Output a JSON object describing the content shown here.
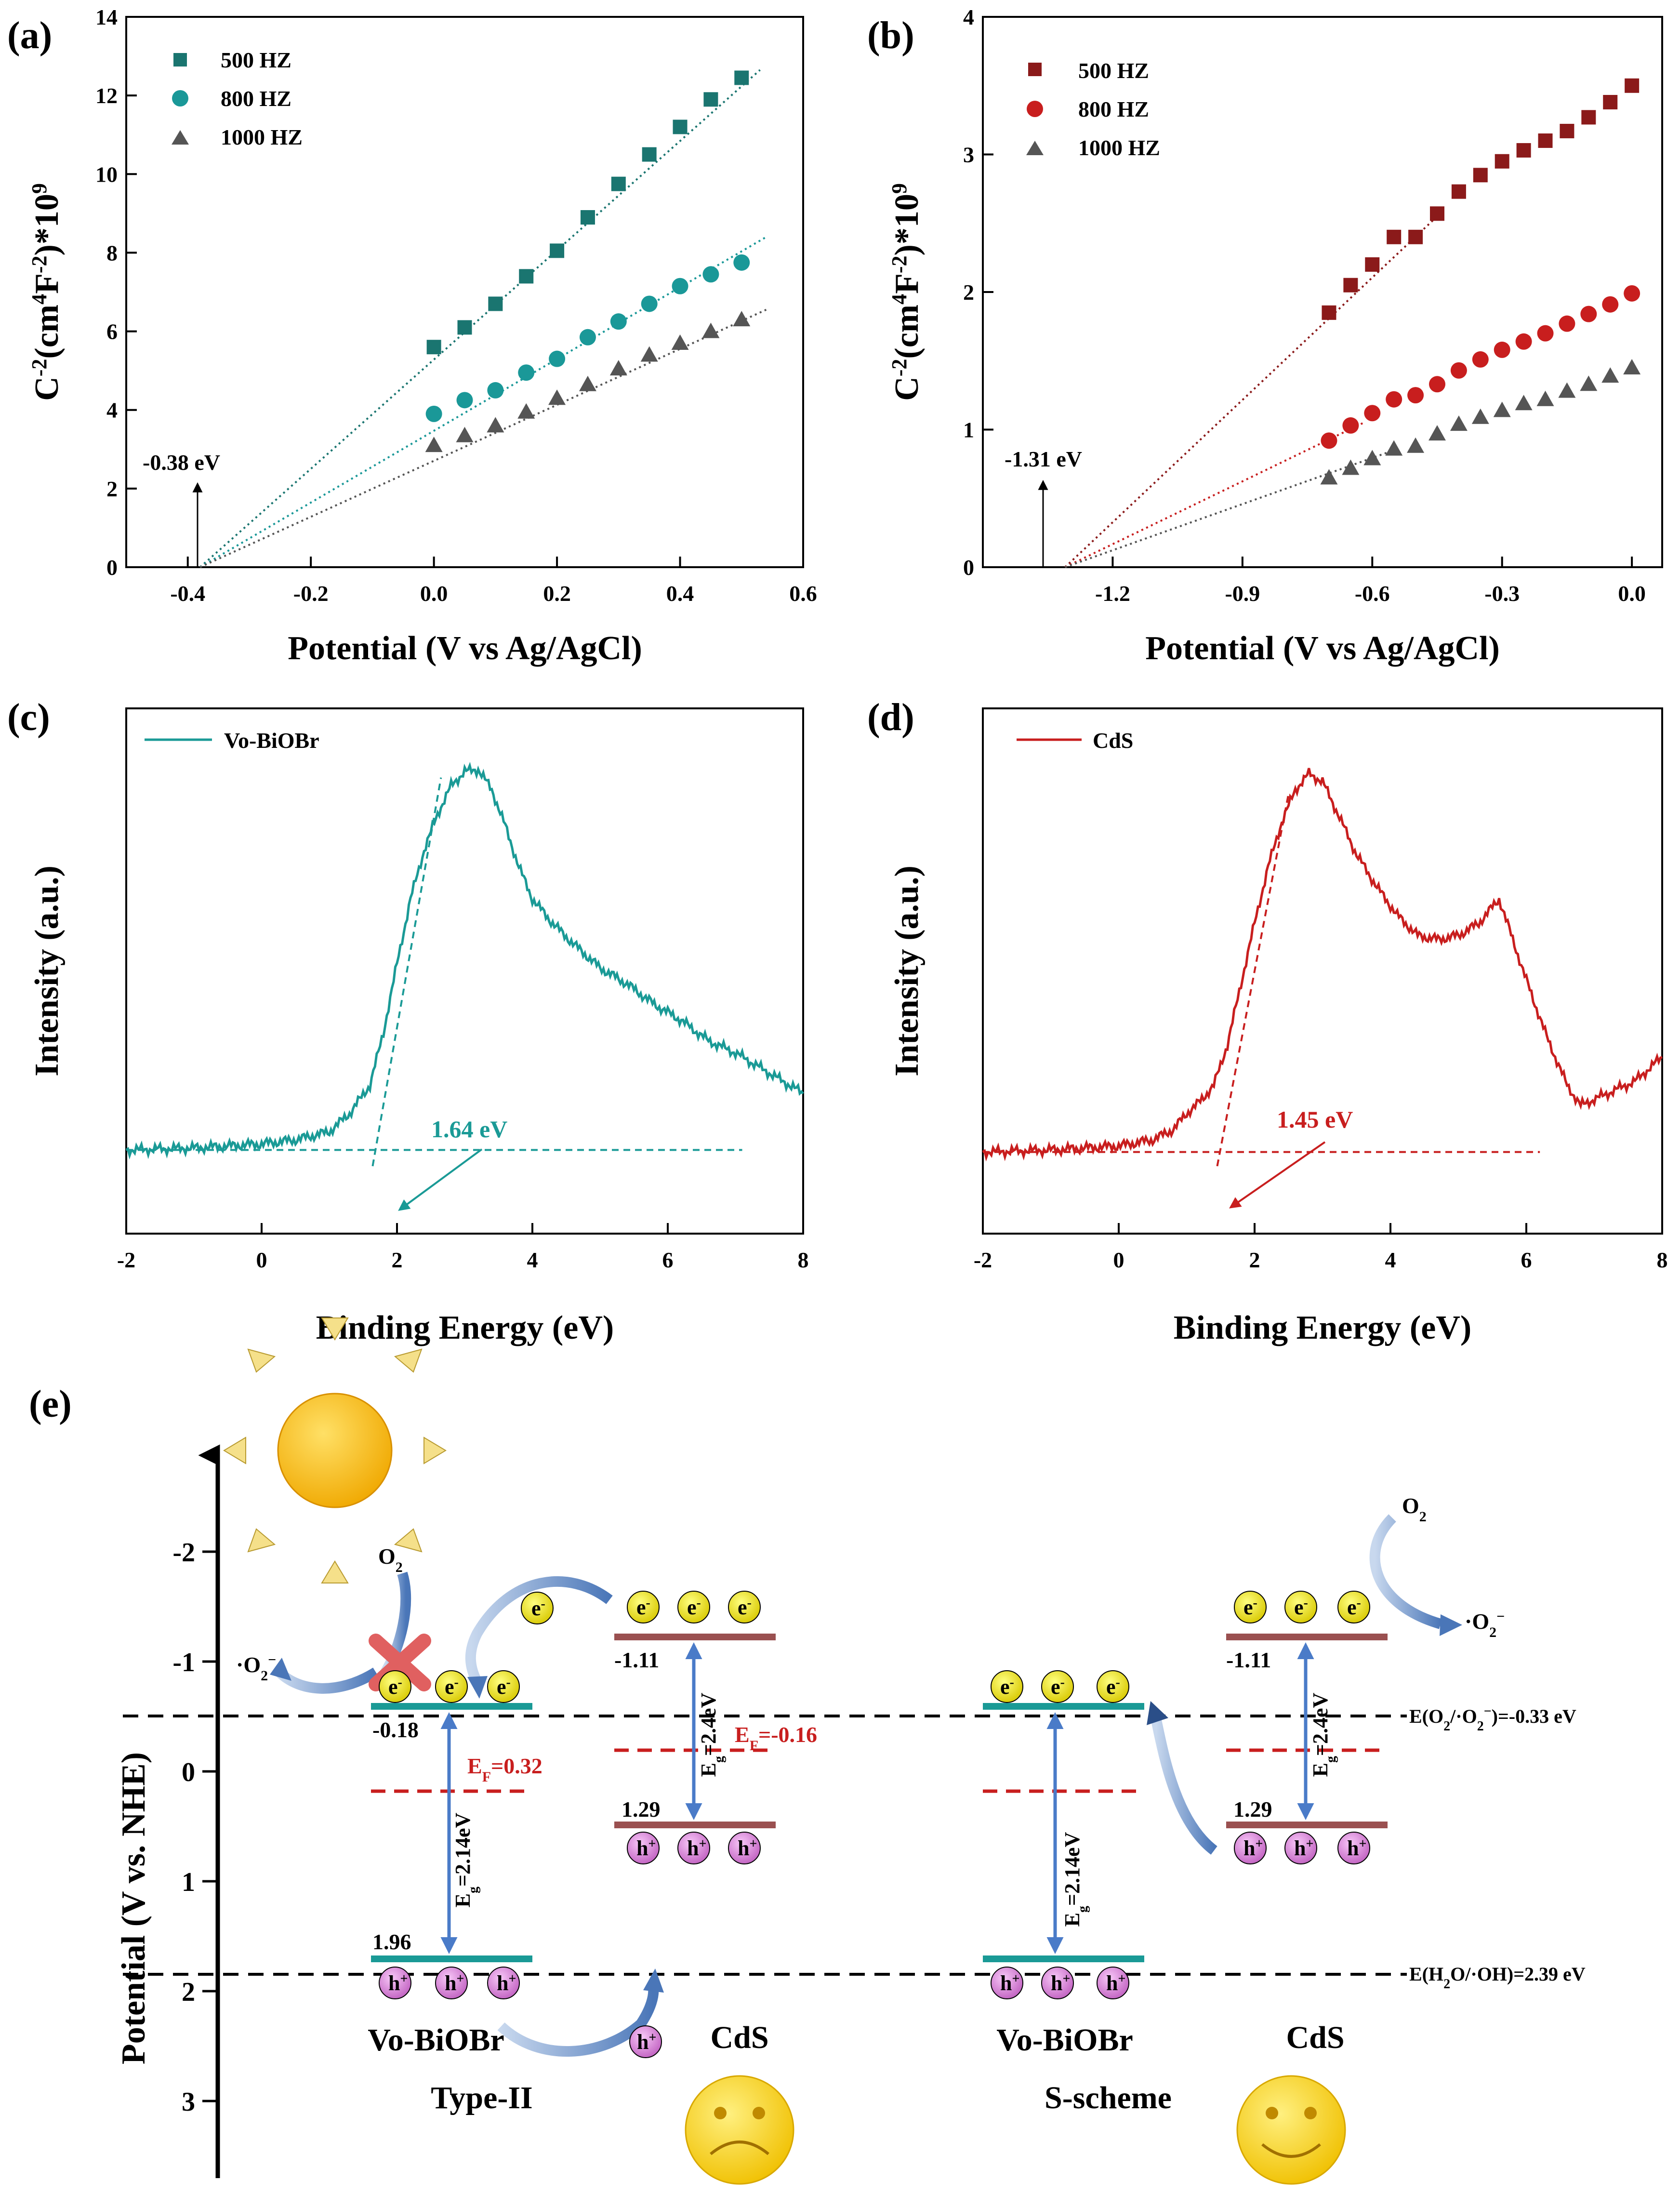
{
  "colors": {
    "teal": "#1a7570",
    "teal_light": "#1a9898",
    "cyan_line": "#1a9a96",
    "dark_red": "#8b1a1a",
    "red": "#c81e1e",
    "gray": "#555555",
    "arrow_blue": "#4a7bc8",
    "band_teal": "#1a9a96",
    "band_brown": "#9a5050",
    "fermi_red": "#c81e1e",
    "sun": "#f6b800",
    "electron": "#f0e000",
    "hole": "#e080e0"
  },
  "chart_data": [
    {
      "panel_label": "(a)",
      "type": "scatter",
      "xlabel": "Potential (V vs Ag/AgCl)",
      "ylabel_base": "C",
      "ylabel_sup1": "-2",
      "ylabel_mid": "(cm",
      "ylabel_sup2": "4",
      "ylabel_mid2": "F",
      "ylabel_sup3": "-2",
      "ylabel_end": ")*10",
      "ylabel_sup4": "9",
      "xlim": [
        -0.5,
        0.6
      ],
      "ylim": [
        0,
        14
      ],
      "xticks": [
        "-0.4",
        "-0.2",
        "0.0",
        "0.2",
        "0.4",
        "0.6"
      ],
      "xtick_values": [
        -0.4,
        -0.2,
        0.0,
        0.2,
        0.4,
        0.6
      ],
      "yticks": [
        "0",
        "2",
        "4",
        "6",
        "8",
        "10",
        "12",
        "14"
      ],
      "ytick_values": [
        0,
        2,
        4,
        6,
        8,
        10,
        12,
        14
      ],
      "annotation": "-0.38 eV",
      "annotation_x": -0.38,
      "series": [
        {
          "name": "500 HZ",
          "marker": "square",
          "color": "#1a7570",
          "x": [
            0,
            0.05,
            0.1,
            0.15,
            0.2,
            0.25,
            0.3,
            0.35,
            0.4,
            0.45,
            0.5
          ],
          "y": [
            5.6,
            6.1,
            6.7,
            7.4,
            8.05,
            8.9,
            9.75,
            10.5,
            11.2,
            11.9,
            12.45
          ],
          "fit": [
            [
              -0.38,
              0
            ],
            [
              0.53,
              12.65
            ]
          ],
          "fit_color": "#1a7570"
        },
        {
          "name": "800 HZ",
          "marker": "circle",
          "color": "#1a9898",
          "x": [
            0,
            0.05,
            0.1,
            0.15,
            0.2,
            0.25,
            0.3,
            0.35,
            0.4,
            0.45,
            0.5
          ],
          "y": [
            3.9,
            4.25,
            4.5,
            4.95,
            5.3,
            5.85,
            6.25,
            6.7,
            7.15,
            7.45,
            7.75
          ],
          "fit": [
            [
              -0.38,
              0
            ],
            [
              0.54,
              8.4
            ]
          ],
          "fit_color": "#1a9898"
        },
        {
          "name": "1000 HZ",
          "marker": "triangle",
          "color": "#555555",
          "x": [
            0,
            0.05,
            0.1,
            0.15,
            0.2,
            0.25,
            0.3,
            0.35,
            0.4,
            0.45,
            0.5
          ],
          "y": [
            3.1,
            3.35,
            3.6,
            3.95,
            4.3,
            4.65,
            5.05,
            5.4,
            5.7,
            6.0,
            6.3
          ],
          "fit": [
            [
              -0.38,
              0
            ],
            [
              0.54,
              6.55
            ]
          ],
          "fit_color": "#555555"
        }
      ]
    },
    {
      "panel_label": "(b)",
      "type": "scatter",
      "xlabel": "Potential (V vs Ag/AgCl)",
      "ylabel_base": "C",
      "ylabel_sup1": "-2",
      "ylabel_mid": "(cm",
      "ylabel_sup2": "4",
      "ylabel_mid2": "F",
      "ylabel_sup3": "-2",
      "ylabel_end": ")*10",
      "ylabel_sup4": "9",
      "xlim": [
        -1.5,
        0.07
      ],
      "ylim": [
        0,
        4
      ],
      "xticks": [
        "-1.2",
        "-0.9",
        "-0.6",
        "-0.3",
        "0.0"
      ],
      "xtick_values": [
        -1.2,
        -0.9,
        -0.6,
        -0.3,
        0.0
      ],
      "yticks": [
        "0",
        "1",
        "2",
        "3",
        "4"
      ],
      "ytick_values": [
        0,
        1,
        2,
        3,
        4
      ],
      "annotation": "-1.31 eV",
      "annotation_x": -1.31,
      "series": [
        {
          "name": "500 HZ",
          "marker": "square",
          "color": "#8b1a1a",
          "x": [
            -0.7,
            -0.65,
            -0.6,
            -0.55,
            -0.5,
            -0.45,
            -0.4,
            -0.35,
            -0.3,
            -0.25,
            -0.2,
            -0.15,
            -0.1,
            -0.05,
            0
          ],
          "y": [
            1.85,
            2.05,
            2.2,
            2.4,
            2.4,
            2.57,
            2.73,
            2.85,
            2.95,
            3.03,
            3.1,
            3.17,
            3.27,
            3.38,
            3.5
          ],
          "fit": [
            [
              -1.31,
              0
            ],
            [
              -0.45,
              2.55
            ]
          ],
          "fit_color": "#8b1a1a"
        },
        {
          "name": "800 HZ",
          "marker": "circle",
          "color": "#c81e1e",
          "x": [
            -0.7,
            -0.65,
            -0.6,
            -0.55,
            -0.5,
            -0.45,
            -0.4,
            -0.35,
            -0.3,
            -0.25,
            -0.2,
            -0.15,
            -0.1,
            -0.05,
            0
          ],
          "y": [
            0.92,
            1.03,
            1.12,
            1.22,
            1.25,
            1.33,
            1.43,
            1.51,
            1.58,
            1.64,
            1.7,
            1.77,
            1.84,
            1.91,
            1.99
          ],
          "fit": [
            [
              -1.31,
              0
            ],
            [
              -0.62,
              1.05
            ]
          ],
          "fit_color": "#c81e1e"
        },
        {
          "name": "1000 HZ",
          "marker": "triangle",
          "color": "#555555",
          "x": [
            -0.7,
            -0.65,
            -0.6,
            -0.55,
            -0.5,
            -0.45,
            -0.4,
            -0.35,
            -0.3,
            -0.25,
            -0.2,
            -0.15,
            -0.1,
            -0.05,
            0
          ],
          "y": [
            0.65,
            0.72,
            0.79,
            0.86,
            0.88,
            0.97,
            1.04,
            1.09,
            1.14,
            1.19,
            1.22,
            1.28,
            1.33,
            1.39,
            1.45
          ],
          "fit": [
            [
              -1.31,
              0
            ],
            [
              -0.55,
              0.85
            ]
          ],
          "fit_color": "#555555"
        }
      ]
    },
    {
      "panel_label": "(c)",
      "type": "line",
      "xlabel": "Binding Energy (eV)",
      "ylabel": "Intensity (a.u.)",
      "xlim": [
        -2,
        8
      ],
      "ylim": [
        0,
        1
      ],
      "xticks": [
        "-2",
        "0",
        "2",
        "4",
        "6",
        "8"
      ],
      "xtick_values": [
        -2,
        0,
        2,
        4,
        6,
        8
      ],
      "legend": "Vo-BiOBr",
      "color": "#1a9a96",
      "annotation": "1.64 eV",
      "x": [
        -2,
        -1,
        0,
        0.5,
        1,
        1.3,
        1.6,
        1.8,
        2.0,
        2.2,
        2.4,
        2.6,
        2.8,
        3.0,
        3.2,
        3.4,
        3.6,
        3.8,
        4.0,
        4.3,
        4.6,
        5.0,
        5.4,
        5.8,
        6.2,
        6.6,
        7.0,
        7.4,
        7.8,
        8.0
      ],
      "y": [
        0.04,
        0.045,
        0.055,
        0.065,
        0.085,
        0.13,
        0.2,
        0.33,
        0.5,
        0.66,
        0.78,
        0.87,
        0.94,
        0.975,
        0.98,
        0.93,
        0.84,
        0.74,
        0.66,
        0.6,
        0.55,
        0.49,
        0.45,
        0.4,
        0.36,
        0.31,
        0.28,
        0.24,
        0.2,
        0.18
      ],
      "baseline": [
        [
          -2,
          0.04
        ],
        [
          7.1,
          0.04
        ]
      ],
      "tangent": [
        [
          1.64,
          0.0
        ],
        [
          2.65,
          0.96
        ]
      ]
    },
    {
      "panel_label": "(d)",
      "type": "line",
      "xlabel": "Binding Energy (eV)",
      "ylabel": "Intensity (a.u.)",
      "xlim": [
        -2,
        8
      ],
      "ylim": [
        0,
        1
      ],
      "xticks": [
        "-2",
        "0",
        "2",
        "4",
        "6",
        "8"
      ],
      "xtick_values": [
        -2,
        0,
        2,
        4,
        6,
        8
      ],
      "legend": "CdS",
      "color": "#c81e1e",
      "annotation": "1.45 eV",
      "x": [
        -2,
        -1,
        0,
        0.5,
        0.8,
        1.0,
        1.2,
        1.4,
        1.6,
        1.8,
        2.0,
        2.2,
        2.4,
        2.6,
        2.8,
        3.0,
        3.2,
        3.5,
        3.8,
        4.1,
        4.4,
        4.7,
        5.0,
        5.3,
        5.6,
        5.8,
        6.0,
        6.3,
        6.6,
        6.8,
        7.2,
        7.6,
        8.0
      ],
      "y": [
        0.035,
        0.04,
        0.05,
        0.065,
        0.09,
        0.13,
        0.16,
        0.2,
        0.3,
        0.45,
        0.6,
        0.74,
        0.85,
        0.93,
        0.97,
        0.95,
        0.88,
        0.77,
        0.69,
        0.62,
        0.57,
        0.56,
        0.57,
        0.6,
        0.66,
        0.56,
        0.46,
        0.32,
        0.2,
        0.15,
        0.18,
        0.21,
        0.27
      ],
      "baseline": [
        [
          -2,
          0.035
        ],
        [
          6.2,
          0.035
        ]
      ],
      "tangent": [
        [
          1.45,
          0.0
        ],
        [
          2.5,
          0.92
        ]
      ]
    }
  ],
  "panel_e": {
    "label": "(e)",
    "ylabel": "Potential (V vs. NHE)",
    "yticks": [
      "-2",
      "-1",
      "0",
      "1",
      "2",
      "3"
    ],
    "ytick_values": [
      -2,
      -1,
      0,
      1,
      2,
      3
    ],
    "o2_label": "O",
    "o2_sub": "2",
    "superoxide_label": "·O",
    "superoxide_sub": "2",
    "superoxide_sup": "−",
    "e_label": "e",
    "e_sup": "-",
    "h_label": "h",
    "h_sup": "+",
    "left_cb_biobr": "-0.18",
    "left_vb_biobr": "1.96",
    "left_ef_biobr": "E",
    "left_ef_biobr_sub": "F",
    "left_ef_biobr_val": "=0.32",
    "cds_cb": "-1.11",
    "cds_vb": "1.29",
    "cds_ef": "E",
    "cds_ef_sub": "F",
    "cds_ef_val": "=-0.16",
    "eg_biobr": "E",
    "eg_biobr_sub": "g",
    "eg_biobr_val": "=2.14eV",
    "eg_cds": "E",
    "eg_cds_sub": "g",
    "eg_cds_val": "=2.4eV",
    "label_vo_biobr": "Vo-BiOBr",
    "label_cds": "CdS",
    "scheme_type2": "Type-II",
    "scheme_s": "S-scheme",
    "ref_o2_a": "E(O",
    "ref_o2_b": "2",
    "ref_o2_c": "/·O",
    "ref_o2_d": "2",
    "ref_o2_e": "−",
    "ref_o2_f": ")=-0.33 eV",
    "ref_h2o": "E(H",
    "ref_h2o_b": "2",
    "ref_h2o_c": "O/·OH)=2.39 eV",
    "right_cds_cb": "-1.11",
    "right_cds_vb": "1.29"
  }
}
